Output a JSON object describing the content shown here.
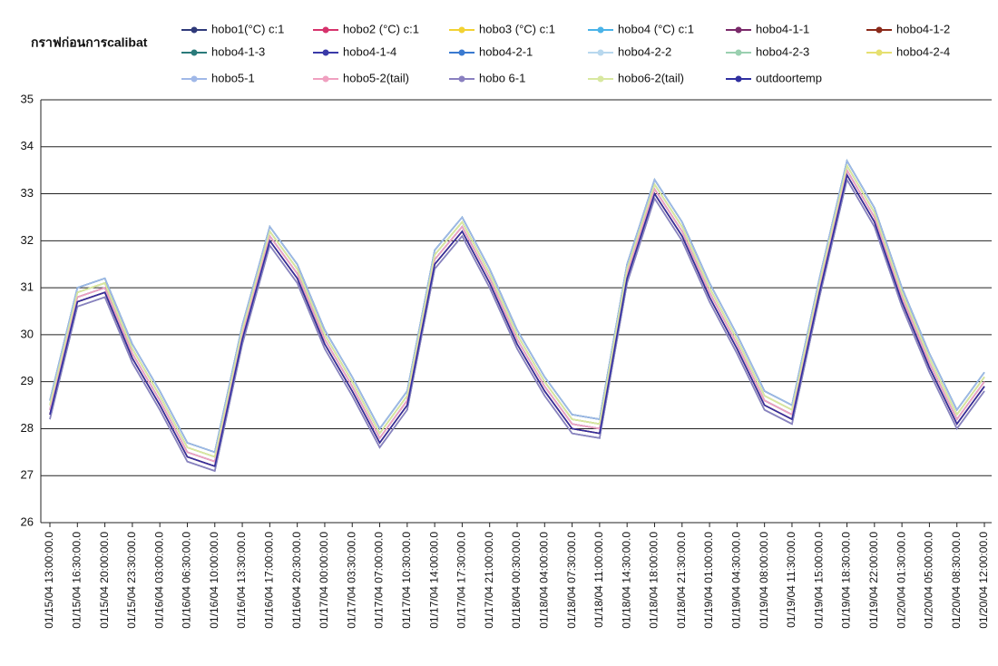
{
  "chart_data": {
    "type": "line",
    "title": "กราฟก่อนการcalibat",
    "categories": [
      "01/15/04 13:00:00.0",
      "01/15/04 16:30:00.0",
      "01/15/04 20:00:00.0",
      "01/15/04 23:30:00.0",
      "01/16/04 03:00:00.0",
      "01/16/04 06:30:00.0",
      "01/16/04 10:00:00.0",
      "01/16/04 13:30:00.0",
      "01/16/04 17:00:00.0",
      "01/16/04 20:30:00.0",
      "01/17/04 00:00:00.0",
      "01/17/04 03:30:00.0",
      "01/17/04 07:00:00.0",
      "01/17/04 10:30:00.0",
      "01/17/04 14:00:00.0",
      "01/17/04 17:30:00.0",
      "01/17/04 21:00:00.0",
      "01/18/04 00:30:00.0",
      "01/18/04 04:00:00.0",
      "01/18/04 07:30:00.0",
      "01/18/04 11:00:00.0",
      "01/18/04 14:30:00.0",
      "01/18/04 18:00:00.0",
      "01/18/04 21:30:00.0",
      "01/19/04 01:00:00.0",
      "01/19/04 04:30:00.0",
      "01/19/04 08:00:00.0",
      "01/19/04 11:30:00.0",
      "01/19/04 15:00:00.0",
      "01/19/04 18:30:00.0",
      "01/19/04 22:00:00.0",
      "01/20/04 01:30:00.0",
      "01/20/04 05:00:00.0",
      "01/20/04 08:30:00.0",
      "01/20/04 12:00:00.0"
    ],
    "ylim": [
      26,
      35
    ],
    "yticks": [
      26,
      27,
      28,
      29,
      30,
      31,
      32,
      33,
      34,
      35
    ],
    "grid": true,
    "series": [
      {
        "name": "hobo1(°C) c:1",
        "color": "#2f3a7a",
        "values": [
          28.4,
          30.8,
          31.0,
          29.6,
          28.6,
          27.5,
          27.3,
          30.0,
          32.1,
          31.3,
          29.9,
          28.9,
          27.8,
          28.6,
          31.6,
          32.3,
          31.2,
          29.9,
          28.9,
          28.1,
          28.0,
          31.3,
          33.1,
          32.2,
          30.9,
          29.8,
          28.6,
          28.3,
          31.0,
          33.5,
          32.5,
          30.8,
          29.4,
          28.2,
          29.0
        ]
      },
      {
        "name": "hobo2 (°C) c:1",
        "color": "#d6336c",
        "values": [
          28.3,
          30.7,
          30.9,
          29.5,
          28.5,
          27.4,
          27.2,
          29.9,
          32.0,
          31.2,
          29.8,
          28.8,
          27.7,
          28.5,
          31.5,
          32.2,
          31.1,
          29.8,
          28.8,
          28.0,
          27.9,
          31.2,
          33.0,
          32.1,
          30.8,
          29.7,
          28.5,
          28.2,
          30.9,
          33.4,
          32.4,
          30.7,
          29.3,
          28.1,
          28.9
        ]
      },
      {
        "name": "hobo3 (°C) c:1",
        "color": "#f2d233",
        "values": [
          28.5,
          30.9,
          31.1,
          29.7,
          28.7,
          27.6,
          27.4,
          30.1,
          32.2,
          31.4,
          30.0,
          29.0,
          27.9,
          28.7,
          31.7,
          32.4,
          31.3,
          30.0,
          29.0,
          28.2,
          28.1,
          31.4,
          33.2,
          32.3,
          31.0,
          29.9,
          28.7,
          28.4,
          31.1,
          33.6,
          32.6,
          30.9,
          29.5,
          28.3,
          29.1
        ]
      },
      {
        "name": "hobo4 (°C) c:1",
        "color": "#4ab3e8",
        "values": [
          28.6,
          31.0,
          31.2,
          29.8,
          28.8,
          27.7,
          27.5,
          30.2,
          32.3,
          31.5,
          30.1,
          29.1,
          28.0,
          28.8,
          31.8,
          32.5,
          31.4,
          30.1,
          29.1,
          28.3,
          28.2,
          31.5,
          33.3,
          32.4,
          31.1,
          30.0,
          28.8,
          28.5,
          31.2,
          33.7,
          32.7,
          31.0,
          29.6,
          28.4,
          29.2
        ]
      },
      {
        "name": "hobo4-1-1",
        "color": "#7a2a6a",
        "values": [
          28.4,
          30.8,
          31.0,
          29.6,
          28.6,
          27.5,
          27.3,
          30.0,
          32.1,
          31.3,
          29.9,
          28.9,
          27.8,
          28.6,
          31.6,
          32.3,
          31.2,
          29.9,
          28.9,
          28.1,
          28.0,
          31.3,
          33.1,
          32.2,
          30.9,
          29.8,
          28.6,
          28.3,
          31.0,
          33.5,
          32.5,
          30.8,
          29.4,
          28.2,
          29.0
        ]
      },
      {
        "name": "hobo4-1-2",
        "color": "#8b2a1a",
        "values": [
          28.3,
          30.7,
          30.9,
          29.5,
          28.5,
          27.4,
          27.2,
          29.9,
          32.0,
          31.2,
          29.8,
          28.8,
          27.7,
          28.5,
          31.5,
          32.2,
          31.1,
          29.8,
          28.8,
          28.0,
          27.9,
          31.2,
          33.0,
          32.1,
          30.8,
          29.7,
          28.5,
          28.2,
          30.9,
          33.4,
          32.4,
          30.7,
          29.3,
          28.1,
          28.9
        ]
      },
      {
        "name": "hobo4-1-3",
        "color": "#2a7a7a",
        "values": [
          28.6,
          31.0,
          31.2,
          29.8,
          28.8,
          27.7,
          27.5,
          30.2,
          32.3,
          31.5,
          30.1,
          29.1,
          28.0,
          28.8,
          31.8,
          32.5,
          31.4,
          30.1,
          29.1,
          28.3,
          28.2,
          31.5,
          33.3,
          32.4,
          31.1,
          30.0,
          28.8,
          28.5,
          31.2,
          33.7,
          32.7,
          31.0,
          29.6,
          28.4,
          29.2
        ]
      },
      {
        "name": "hobo4-1-4",
        "color": "#3a3aa8",
        "values": [
          28.2,
          30.6,
          30.8,
          29.4,
          28.4,
          27.3,
          27.1,
          29.8,
          31.9,
          31.1,
          29.7,
          28.7,
          27.6,
          28.4,
          31.4,
          32.1,
          31.0,
          29.7,
          28.7,
          27.9,
          27.8,
          31.1,
          32.9,
          32.0,
          30.7,
          29.6,
          28.4,
          28.1,
          30.8,
          33.3,
          32.3,
          30.6,
          29.2,
          28.0,
          28.8
        ]
      },
      {
        "name": "hobo4-2-1",
        "color": "#3a7ad0",
        "values": [
          28.5,
          30.9,
          31.1,
          29.7,
          28.7,
          27.6,
          27.4,
          30.1,
          32.2,
          31.4,
          30.0,
          29.0,
          27.9,
          28.7,
          31.7,
          32.4,
          31.3,
          30.0,
          29.0,
          28.2,
          28.1,
          31.4,
          33.2,
          32.3,
          31.0,
          29.9,
          28.7,
          28.4,
          31.1,
          33.6,
          32.6,
          30.9,
          29.5,
          28.3,
          29.1
        ]
      },
      {
        "name": "hobo4-2-2",
        "color": "#b8d8ee",
        "values": [
          28.4,
          30.8,
          31.0,
          29.6,
          28.6,
          27.5,
          27.3,
          30.0,
          32.1,
          31.3,
          29.9,
          28.9,
          27.8,
          28.6,
          31.6,
          32.3,
          31.2,
          29.9,
          28.9,
          28.1,
          28.0,
          31.3,
          33.1,
          32.2,
          30.9,
          29.8,
          28.6,
          28.3,
          31.0,
          33.5,
          32.5,
          30.8,
          29.4,
          28.2,
          29.0
        ]
      },
      {
        "name": "hobo4-2-3",
        "color": "#9ad0b0",
        "values": [
          28.2,
          30.6,
          30.8,
          29.4,
          28.4,
          27.3,
          27.1,
          29.8,
          31.9,
          31.1,
          29.7,
          28.7,
          27.6,
          28.4,
          31.4,
          32.1,
          31.0,
          29.7,
          28.7,
          27.9,
          27.8,
          31.1,
          32.9,
          32.0,
          30.7,
          29.6,
          28.4,
          28.1,
          30.8,
          33.3,
          32.3,
          30.6,
          29.2,
          28.0,
          28.8
        ]
      },
      {
        "name": "hobo4-2-4",
        "color": "#e6e070",
        "values": [
          28.5,
          30.9,
          31.1,
          29.7,
          28.7,
          27.6,
          27.4,
          30.1,
          32.2,
          31.4,
          30.0,
          29.0,
          27.9,
          28.7,
          31.7,
          32.4,
          31.3,
          30.0,
          29.0,
          28.2,
          28.1,
          31.4,
          33.2,
          32.3,
          31.0,
          29.9,
          28.7,
          28.4,
          31.1,
          33.6,
          32.6,
          30.9,
          29.5,
          28.3,
          29.1
        ]
      },
      {
        "name": "hobo5-1",
        "color": "#a0b8e8",
        "values": [
          28.6,
          31.0,
          31.2,
          29.8,
          28.8,
          27.7,
          27.5,
          30.2,
          32.3,
          31.5,
          30.1,
          29.1,
          28.0,
          28.8,
          31.8,
          32.5,
          31.4,
          30.1,
          29.1,
          28.3,
          28.2,
          31.5,
          33.3,
          32.4,
          31.1,
          30.0,
          28.8,
          28.5,
          31.2,
          33.7,
          32.7,
          31.0,
          29.6,
          28.4,
          29.2
        ]
      },
      {
        "name": "hobo5-2(tail)",
        "color": "#f0a0c0",
        "values": [
          28.4,
          30.8,
          31.0,
          29.6,
          28.6,
          27.5,
          27.3,
          30.0,
          32.1,
          31.3,
          29.9,
          28.9,
          27.8,
          28.6,
          31.6,
          32.3,
          31.2,
          29.9,
          28.9,
          28.1,
          28.0,
          31.3,
          33.1,
          32.2,
          30.9,
          29.8,
          28.6,
          28.3,
          31.0,
          33.5,
          32.5,
          30.8,
          29.4,
          28.2,
          29.0
        ]
      },
      {
        "name": "hobo 6-1",
        "color": "#8a80c0",
        "values": [
          28.2,
          30.6,
          30.8,
          29.4,
          28.4,
          27.3,
          27.1,
          29.8,
          31.9,
          31.1,
          29.7,
          28.7,
          27.6,
          28.4,
          31.4,
          32.1,
          31.0,
          29.7,
          28.7,
          27.9,
          27.8,
          31.1,
          32.9,
          32.0,
          30.7,
          29.6,
          28.4,
          28.1,
          30.8,
          33.3,
          32.3,
          30.6,
          29.2,
          28.0,
          28.8
        ]
      },
      {
        "name": "hobo6-2(tail)",
        "color": "#d8e8a0",
        "values": [
          28.5,
          30.9,
          31.1,
          29.7,
          28.7,
          27.6,
          27.4,
          30.1,
          32.2,
          31.4,
          30.0,
          29.0,
          27.9,
          28.7,
          31.7,
          32.4,
          31.3,
          30.0,
          29.0,
          28.2,
          28.1,
          31.4,
          33.2,
          32.3,
          31.0,
          29.9,
          28.7,
          28.4,
          31.1,
          33.6,
          32.6,
          30.9,
          29.5,
          28.3,
          29.1
        ]
      },
      {
        "name": "outdoortemp",
        "color": "#3030a0",
        "values": [
          28.3,
          30.7,
          30.9,
          29.5,
          28.5,
          27.4,
          27.2,
          29.9,
          32.0,
          31.2,
          29.8,
          28.8,
          27.7,
          28.5,
          31.5,
          32.2,
          31.1,
          29.8,
          28.8,
          28.0,
          27.9,
          31.2,
          33.0,
          32.1,
          30.8,
          29.7,
          28.5,
          28.2,
          30.9,
          33.4,
          32.4,
          30.7,
          29.3,
          28.1,
          28.9
        ]
      }
    ]
  }
}
